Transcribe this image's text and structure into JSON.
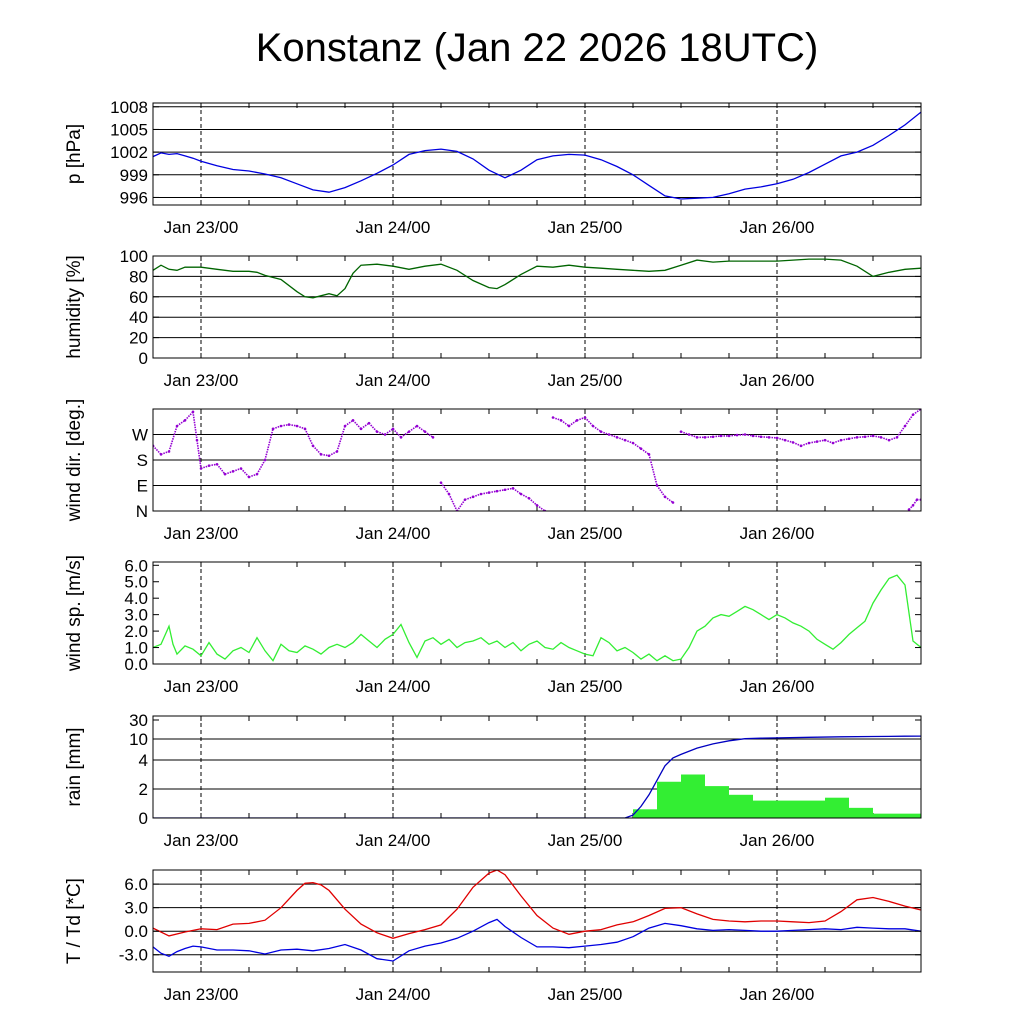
{
  "title": "Konstanz (Jan 22 2026 18UTC)",
  "colors": {
    "pressure": "#0000e0",
    "humidity": "#006400",
    "wind_dir": "#9400d3",
    "wind_speed": "#33ee33",
    "rain_bars": "#33ee33",
    "rain_cum": "#0000c0",
    "temperature": "#e00000",
    "dewpoint": "#0000e0"
  },
  "chart_data": [
    {
      "type": "line",
      "name": "pressure",
      "ylabel": "p [hPa]",
      "ylim": [
        995,
        1008.5
      ],
      "yticks": [
        996,
        999,
        1002,
        1005,
        1008
      ],
      "gridlines": [
        996,
        999,
        1002,
        1005,
        1008
      ],
      "xlim": [
        -6,
        90
      ],
      "xtick_labels": [
        "Jan 23/00",
        "Jan 24/00",
        "Jan 25/00",
        "Jan 26/00"
      ],
      "xtick_hours": [
        0,
        24,
        48,
        72
      ],
      "series": [
        {
          "name": "p",
          "color": "pressure",
          "x": [
            -6,
            -5,
            -4,
            -3,
            -2,
            -1,
            0,
            2,
            4,
            6,
            8,
            10,
            12,
            14,
            16,
            18,
            20,
            22,
            24,
            26,
            28,
            30,
            32,
            34,
            36,
            38,
            40,
            42,
            44,
            46,
            48,
            50,
            52,
            54,
            56,
            58,
            60,
            62,
            64,
            66,
            68,
            70,
            72,
            74,
            76,
            78,
            80,
            82,
            84,
            86,
            88,
            90
          ],
          "y": [
            1001.4,
            1001.9,
            1001.7,
            1001.8,
            1001.5,
            1001.2,
            1000.8,
            1000.2,
            999.7,
            999.5,
            999.1,
            998.6,
            997.8,
            997.0,
            996.7,
            997.3,
            998.2,
            999.2,
            1000.3,
            1001.7,
            1002.2,
            1002.4,
            1002.1,
            1001.1,
            999.6,
            998.6,
            999.6,
            1001.0,
            1001.5,
            1001.7,
            1001.6,
            1001.0,
            1000.1,
            999.0,
            997.6,
            996.2,
            995.8,
            995.9,
            996.0,
            996.5,
            997.1,
            997.4,
            997.8,
            998.4,
            999.3,
            1000.4,
            1001.5,
            1002.0,
            1002.9,
            1004.2,
            1005.6,
            1007.3
          ]
        }
      ]
    },
    {
      "type": "line",
      "name": "humidity",
      "ylabel": "humidity [%]",
      "ylim": [
        0,
        100
      ],
      "yticks": [
        0,
        20,
        40,
        60,
        80,
        100
      ],
      "gridlines": [
        20,
        40,
        60,
        80,
        100
      ],
      "xlim": [
        -6,
        90
      ],
      "xtick_labels": [
        "Jan 23/00",
        "Jan 24/00",
        "Jan 25/00",
        "Jan 26/00"
      ],
      "xtick_hours": [
        0,
        24,
        48,
        72
      ],
      "series": [
        {
          "name": "rh",
          "color": "humidity",
          "x": [
            -6,
            -5,
            -4,
            -3,
            -2,
            0,
            2,
            4,
            6,
            7,
            8,
            10,
            12,
            13,
            14,
            16,
            17,
            18,
            19,
            20,
            22,
            24,
            26,
            28,
            30,
            32,
            34,
            36,
            37,
            38,
            40,
            42,
            44,
            46,
            48,
            50,
            52,
            54,
            56,
            58,
            60,
            62,
            64,
            66,
            68,
            70,
            72,
            74,
            76,
            78,
            80,
            82,
            84,
            86,
            88,
            90
          ],
          "y": [
            86,
            91,
            87,
            86,
            89,
            89,
            87,
            85,
            85,
            84,
            81,
            77,
            65,
            60,
            59,
            63,
            61,
            68,
            83,
            91,
            92,
            90,
            87,
            90,
            92,
            86,
            76,
            69,
            68,
            72,
            82,
            90,
            89,
            91,
            89,
            88,
            87,
            86,
            85,
            86,
            91,
            96,
            94,
            95,
            95,
            95,
            95,
            96,
            97,
            97,
            96,
            90,
            80,
            84,
            87,
            88
          ]
        }
      ]
    },
    {
      "type": "scatter",
      "name": "wind_direction",
      "ylabel": "wind dir. [deg.]",
      "ylim": [
        0,
        360
      ],
      "yticks": [
        0,
        90,
        180,
        270
      ],
      "ytick_labels": [
        "N",
        "E",
        "S",
        "W"
      ],
      "gridlines": [
        90,
        180,
        270
      ],
      "xlim": [
        -6,
        90
      ],
      "xtick_labels": [
        "Jan 23/00",
        "Jan 24/00",
        "Jan 25/00",
        "Jan 26/00"
      ],
      "xtick_hours": [
        0,
        24,
        48,
        72
      ],
      "series": [
        {
          "name": "dir",
          "color": "wind_dir",
          "x": [
            -6,
            -5,
            -4,
            -3,
            -2,
            -1,
            -0.5,
            0,
            1,
            2,
            3,
            4,
            5,
            6,
            7,
            8,
            9,
            10,
            11,
            12,
            13,
            14,
            15,
            16,
            17,
            18,
            19,
            20,
            21,
            22,
            23,
            24,
            25,
            26,
            27,
            28,
            29,
            30,
            31,
            32,
            33,
            34,
            35,
            36,
            37,
            38,
            39,
            40,
            41,
            42,
            43,
            44,
            45,
            46,
            47,
            48,
            49,
            50,
            51,
            52,
            53,
            54,
            55,
            56,
            57,
            58,
            59,
            60,
            61,
            62,
            63,
            64,
            65,
            66,
            67,
            68,
            69,
            70,
            71,
            72,
            73,
            74,
            75,
            76,
            77,
            78,
            79,
            80,
            81,
            82,
            83,
            84,
            85,
            86,
            87,
            88,
            89,
            90
          ],
          "y": [
            230,
            200,
            210,
            300,
            320,
            350,
            250,
            150,
            160,
            165,
            130,
            140,
            150,
            120,
            130,
            180,
            290,
            300,
            305,
            300,
            290,
            230,
            200,
            195,
            210,
            300,
            320,
            290,
            310,
            280,
            270,
            290,
            260,
            280,
            300,
            280,
            260,
            100,
            60,
            0,
            40,
            50,
            60,
            65,
            70,
            75,
            80,
            60,
            45,
            20,
            0,
            330,
            320,
            300,
            320,
            330,
            300,
            280,
            270,
            260,
            250,
            240,
            220,
            200,
            90,
            50,
            30,
            280,
            270,
            260,
            260,
            262,
            265,
            265,
            268,
            270,
            265,
            262,
            260,
            258,
            250,
            242,
            230,
            240,
            245,
            250,
            240,
            250,
            255,
            260,
            262,
            265,
            260,
            250,
            260,
            300,
            340,
            360
          ]
        },
        {
          "name": "dir-late",
          "color": "wind_dir",
          "x": [
            88.5,
            89,
            89.5,
            90
          ],
          "y": [
            5,
            20,
            40,
            40
          ]
        }
      ]
    },
    {
      "type": "line",
      "name": "wind_speed",
      "ylabel": "wind sp. [m/s]",
      "ylim": [
        0,
        6.2
      ],
      "yticks": [
        0.0,
        1.0,
        2.0,
        3.0,
        4.0,
        5.0,
        6.0
      ],
      "ytick_labels": [
        "0.0",
        "1.0",
        "2.0",
        "3.0",
        "4.0",
        "5.0",
        "6.0"
      ],
      "gridlines": [],
      "xlim": [
        -6,
        90
      ],
      "xtick_labels": [
        "Jan 23/00",
        "Jan 24/00",
        "Jan 25/00",
        "Jan 26/00"
      ],
      "xtick_hours": [
        0,
        24,
        48,
        72
      ],
      "series": [
        {
          "name": "ff",
          "color": "wind_speed",
          "x": [
            -6,
            -5,
            -4,
            -3.5,
            -3,
            -2,
            -1,
            0,
            1,
            2,
            3,
            4,
            5,
            6,
            7,
            8,
            9,
            10,
            11,
            12,
            13,
            14,
            15,
            16,
            17,
            18,
            19,
            20,
            21,
            22,
            23,
            24,
            25,
            26,
            27,
            28,
            29,
            30,
            31,
            32,
            33,
            34,
            35,
            36,
            37,
            38,
            39,
            40,
            41,
            42,
            43,
            44,
            45,
            46,
            47,
            48,
            49,
            50,
            51,
            52,
            53,
            54,
            55,
            56,
            57,
            58,
            59,
            60,
            61,
            62,
            63,
            64,
            65,
            66,
            67,
            68,
            69,
            70,
            71,
            72,
            73,
            74,
            75,
            76,
            77,
            78,
            79,
            80,
            81,
            82,
            83,
            84,
            85,
            86,
            87,
            88,
            89,
            90
          ],
          "y": [
            1.0,
            1.2,
            2.3,
            1.2,
            0.6,
            1.1,
            0.9,
            0.5,
            1.3,
            0.6,
            0.3,
            0.8,
            1.0,
            0.7,
            1.6,
            0.8,
            0.2,
            1.2,
            0.8,
            0.7,
            1.1,
            0.9,
            0.6,
            1.0,
            1.2,
            1.0,
            1.3,
            1.8,
            1.4,
            1.0,
            1.5,
            1.8,
            2.4,
            1.3,
            0.4,
            1.4,
            1.6,
            1.2,
            1.5,
            1.0,
            1.3,
            1.4,
            1.6,
            1.2,
            1.4,
            1.0,
            1.3,
            0.8,
            1.2,
            1.4,
            1.0,
            0.9,
            1.3,
            1.0,
            0.8,
            0.6,
            0.5,
            1.6,
            1.3,
            0.8,
            1.0,
            0.7,
            0.3,
            0.6,
            0.2,
            0.5,
            0.2,
            0.3,
            1.0,
            2.0,
            2.3,
            2.8,
            3.0,
            2.9,
            3.2,
            3.5,
            3.3,
            3.0,
            2.7,
            3.0,
            2.8,
            2.5,
            2.3,
            2.0,
            1.5,
            1.2,
            0.9,
            1.3,
            1.8,
            2.2,
            2.6,
            3.7,
            4.5,
            5.2,
            5.4,
            4.8,
            1.4,
            1.0
          ]
        }
      ]
    },
    {
      "type": "bar",
      "name": "rain",
      "ylabel": "rain [mm]",
      "yscale": "mixed: 0-4 linear bottom, 4-30 compressed top",
      "yticks": [
        0,
        2,
        4,
        10,
        30
      ],
      "gridlines": [
        2,
        4,
        10
      ],
      "xlim": [
        -6,
        90
      ],
      "xtick_labels": [
        "Jan 23/00",
        "Jan 24/00",
        "Jan 25/00",
        "Jan 26/00"
      ],
      "xtick_hours": [
        0,
        24,
        48,
        72
      ],
      "bars_hour_start": [
        54,
        57,
        60,
        63,
        66,
        69,
        72,
        75,
        78,
        81,
        84,
        87
      ],
      "bars_width_hours": 3,
      "bar_values": [
        0.6,
        2.5,
        3.0,
        2.2,
        1.6,
        1.2,
        1.2,
        1.2,
        1.4,
        0.7,
        0.3,
        0.3
      ],
      "series": [
        {
          "name": "cumulative",
          "color": "rain_cum",
          "x": [
            -6,
            53,
            54,
            55,
            56,
            57,
            58,
            59,
            60,
            62,
            64,
            66,
            68,
            70,
            72,
            76,
            80,
            84,
            88,
            90
          ],
          "y": [
            0,
            0,
            0.2,
            0.8,
            1.6,
            2.6,
            3.6,
            4.6,
            5.6,
            7.4,
            8.6,
            9.5,
            10.3,
            10.8,
            11.2,
            11.8,
            12.3,
            12.6,
            12.9,
            13.0
          ]
        }
      ]
    },
    {
      "type": "line",
      "name": "temperature",
      "ylabel": "T / Td [*C]",
      "ylim": [
        -5.2,
        7.8
      ],
      "yticks": [
        -3.0,
        0.0,
        3.0,
        6.0
      ],
      "ytick_labels": [
        "-3.0",
        "0.0",
        "3.0",
        "6.0"
      ],
      "gridlines": [
        -3.0,
        0.0,
        3.0,
        6.0
      ],
      "xlim": [
        -6,
        90
      ],
      "xtick_labels": [
        "Jan 23/00",
        "Jan 24/00",
        "Jan 25/00",
        "Jan 26/00"
      ],
      "xtick_hours": [
        0,
        24,
        48,
        72
      ],
      "series": [
        {
          "name": "T",
          "color": "temperature",
          "x": [
            -6,
            -4,
            -2,
            0,
            2,
            4,
            6,
            8,
            10,
            12,
            13,
            14,
            15,
            16,
            18,
            20,
            22,
            24,
            26,
            28,
            30,
            32,
            34,
            36,
            37,
            38,
            40,
            42,
            44,
            46,
            48,
            50,
            52,
            54,
            56,
            58,
            60,
            62,
            64,
            66,
            68,
            70,
            72,
            74,
            76,
            78,
            80,
            82,
            84,
            86,
            88,
            90
          ],
          "y": [
            0.4,
            -0.6,
            -0.1,
            0.3,
            0.2,
            0.9,
            1.0,
            1.4,
            3.0,
            5.2,
            6.1,
            6.2,
            5.9,
            5.2,
            2.8,
            0.9,
            -0.2,
            -0.9,
            -0.3,
            0.2,
            0.8,
            2.8,
            5.6,
            7.4,
            7.8,
            7.2,
            4.5,
            2.0,
            0.4,
            -0.4,
            0.0,
            0.2,
            0.8,
            1.2,
            2.0,
            2.9,
            3.0,
            2.2,
            1.5,
            1.3,
            1.2,
            1.3,
            1.3,
            1.2,
            1.1,
            1.3,
            2.5,
            4.0,
            4.3,
            3.8,
            3.2,
            2.7
          ]
        },
        {
          "name": "Td",
          "color": "dewpoint",
          "x": [
            -6,
            -5,
            -4,
            -3,
            -2,
            -1,
            0,
            2,
            4,
            6,
            8,
            10,
            12,
            14,
            16,
            18,
            20,
            22,
            24,
            26,
            28,
            30,
            32,
            34,
            36,
            37,
            38,
            40,
            42,
            44,
            46,
            48,
            50,
            52,
            54,
            56,
            58,
            60,
            62,
            64,
            66,
            68,
            70,
            72,
            74,
            76,
            78,
            80,
            82,
            84,
            86,
            88,
            90
          ],
          "y": [
            -2.0,
            -2.8,
            -3.2,
            -2.6,
            -2.2,
            -1.9,
            -2.0,
            -2.4,
            -2.4,
            -2.5,
            -2.9,
            -2.4,
            -2.3,
            -2.5,
            -2.2,
            -1.7,
            -2.4,
            -3.5,
            -3.8,
            -2.5,
            -1.9,
            -1.5,
            -0.9,
            0.0,
            1.1,
            1.5,
            0.6,
            -0.8,
            -2.0,
            -2.0,
            -2.1,
            -1.9,
            -1.7,
            -1.4,
            -0.7,
            0.4,
            1.0,
            0.7,
            0.3,
            0.1,
            0.2,
            0.1,
            0.0,
            0.0,
            0.1,
            0.2,
            0.3,
            0.2,
            0.5,
            0.4,
            0.3,
            0.3,
            0.0
          ]
        }
      ]
    }
  ]
}
